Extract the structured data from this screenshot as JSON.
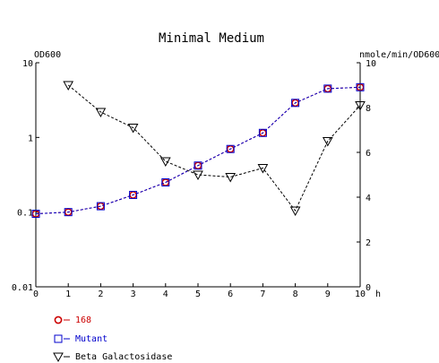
{
  "chart_data": {
    "type": "line",
    "title": "Minimal Medium",
    "x": [
      0,
      1,
      2,
      3,
      4,
      5,
      6,
      7,
      8,
      9,
      10
    ],
    "xlim": [
      0,
      10
    ],
    "x_ticks": [
      "0",
      "1",
      "2",
      "3",
      "4",
      "5",
      "6",
      "7",
      "8",
      "9",
      "10"
    ],
    "x_unit": "h",
    "y_left": {
      "label": "OD600",
      "scale": "log",
      "range": [
        0.01,
        10
      ],
      "ticks": [
        "10",
        "1",
        "0.1",
        "0.01"
      ]
    },
    "y_right": {
      "label": "nmole/min/OD600",
      "scale": "linear",
      "range": [
        0,
        10
      ],
      "ticks": [
        "10",
        "8",
        "6",
        "4",
        "2",
        "0"
      ]
    },
    "grid": false,
    "legend_position": "bottom-left",
    "series": [
      {
        "name": "168",
        "axis": "left",
        "color": "#cc0000",
        "marker": "circle",
        "x": [
          0,
          1,
          2,
          3,
          4,
          5,
          6,
          7,
          8,
          9,
          10
        ],
        "values": [
          0.095,
          0.1,
          0.12,
          0.17,
          0.25,
          0.42,
          0.7,
          1.15,
          2.9,
          4.5,
          4.7
        ]
      },
      {
        "name": "Mutant",
        "axis": "left",
        "color": "#0000cc",
        "marker": "square",
        "x": [
          0,
          1,
          2,
          3,
          4,
          5,
          6,
          7,
          8,
          9,
          10
        ],
        "values": [
          0.095,
          0.1,
          0.12,
          0.17,
          0.25,
          0.42,
          0.7,
          1.15,
          2.9,
          4.5,
          4.7
        ]
      },
      {
        "name": "Beta Galactosidase",
        "axis": "right",
        "color": "#000000",
        "marker": "triangle-down",
        "x": [
          1,
          2,
          3,
          4,
          5,
          6,
          7,
          8,
          9,
          10
        ],
        "values": [
          9.0,
          7.8,
          7.1,
          5.6,
          5.0,
          4.9,
          5.3,
          3.4,
          6.5,
          8.1
        ]
      }
    ]
  }
}
